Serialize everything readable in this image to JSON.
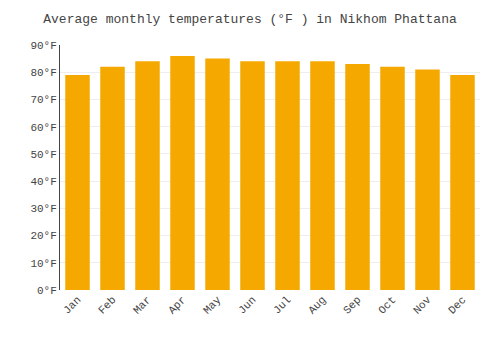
{
  "chart_data": {
    "type": "bar",
    "title": "Average monthly temperatures (°F ) in Nikhom Phattana",
    "categories": [
      "Jan",
      "Feb",
      "Mar",
      "Apr",
      "May",
      "Jun",
      "Jul",
      "Aug",
      "Sep",
      "Oct",
      "Nov",
      "Dec"
    ],
    "values": [
      79,
      82,
      84,
      86,
      85,
      84,
      84,
      84,
      83,
      82,
      81,
      79
    ],
    "color": "#F5A800",
    "ylim": [
      0,
      90
    ],
    "yticks": [
      {
        "value": 0,
        "label": "0°F"
      },
      {
        "value": 10,
        "label": "10°F"
      },
      {
        "value": 20,
        "label": "20°F"
      },
      {
        "value": 30,
        "label": "30°F"
      },
      {
        "value": 40,
        "label": "40°F"
      },
      {
        "value": 50,
        "label": "50°F"
      },
      {
        "value": 60,
        "label": "60°F"
      },
      {
        "value": 70,
        "label": "70°F"
      },
      {
        "value": 80,
        "label": "80°F"
      },
      {
        "value": 90,
        "label": "90°F"
      }
    ],
    "grid": true
  }
}
